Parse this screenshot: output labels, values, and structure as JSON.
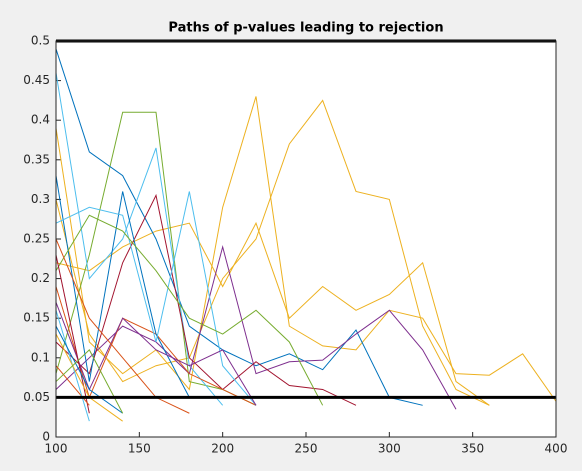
{
  "chart_data": {
    "type": "line",
    "title": "Paths of p-values leading to rejection",
    "x": [
      100,
      120,
      140,
      160,
      180,
      200,
      220,
      240,
      260,
      280,
      300,
      320,
      340,
      360,
      380,
      400
    ],
    "xlim": [
      100,
      400
    ],
    "xticks": [
      100,
      150,
      200,
      250,
      300,
      350,
      400
    ],
    "ylim": [
      0,
      0.5
    ],
    "yticks": [
      0,
      0.05,
      0.1,
      0.15,
      0.2,
      0.25,
      0.3,
      0.35,
      0.4,
      0.45,
      0.5
    ],
    "hlines": [
      0.5,
      0.05
    ],
    "hline_color": "#000000",
    "series": [
      {
        "color": "#EDB120",
        "values": [
          0.22,
          0.21,
          0.24,
          0.26,
          0.27,
          0.19,
          0.27,
          0.15,
          0.19,
          0.16,
          0.18,
          0.22,
          0.07,
          0.04,
          null,
          null
        ]
      },
      {
        "color": "#EDB120",
        "values": [
          0.39,
          0.12,
          0.08,
          0.11,
          0.06,
          0.29,
          0.43,
          0.14,
          0.115,
          0.11,
          0.16,
          0.15,
          0.08,
          0.078,
          0.105,
          0.045
        ]
      },
      {
        "color": "#EDB120",
        "values": [
          0.3,
          0.13,
          0.07,
          0.09,
          0.1,
          0.2,
          0.25,
          0.37,
          0.425,
          0.31,
          0.3,
          0.14,
          0.06,
          0.04,
          null,
          null
        ]
      },
      {
        "color": "#77AC30",
        "values": [
          0.08,
          0.23,
          0.41,
          0.41,
          0.07,
          0.06,
          0.04,
          null,
          null,
          null,
          null,
          null,
          null,
          null,
          null,
          null
        ]
      },
      {
        "color": "#0072BD",
        "values": [
          0.49,
          0.36,
          0.33,
          0.25,
          0.14,
          0.11,
          0.09,
          0.105,
          0.085,
          0.135,
          0.05,
          0.04,
          null,
          null,
          null,
          null
        ]
      },
      {
        "color": "#4DBEEE",
        "values": [
          0.46,
          0.2,
          0.25,
          0.365,
          0.09,
          0.04,
          null,
          null,
          null,
          null,
          null,
          null,
          null,
          null,
          null,
          null
        ]
      },
      {
        "color": "#7E2F8E",
        "values": [
          0.06,
          0.1,
          0.14,
          0.12,
          0.08,
          0.24,
          0.08,
          0.095,
          0.097,
          0.13,
          0.16,
          0.11,
          0.035,
          null,
          null,
          null
        ]
      },
      {
        "color": "#A2142F",
        "values": [
          0.12,
          0.08,
          0.22,
          0.305,
          0.1,
          0.06,
          0.095,
          0.065,
          0.06,
          0.04,
          null,
          null,
          null,
          null,
          null,
          null
        ]
      },
      {
        "color": "#D95319",
        "values": [
          0.19,
          0.05,
          0.15,
          0.13,
          0.08,
          0.06,
          0.04,
          null,
          null,
          null,
          null,
          null,
          null,
          null,
          null,
          null
        ]
      },
      {
        "color": "#0072BD",
        "values": [
          0.33,
          0.07,
          0.31,
          0.13,
          0.05,
          null,
          null,
          null,
          null,
          null,
          null,
          null,
          null,
          null,
          null,
          null
        ]
      },
      {
        "color": "#4DBEEE",
        "values": [
          0.27,
          0.29,
          0.28,
          0.12,
          0.31,
          0.09,
          0.04,
          null,
          null,
          null,
          null,
          null,
          null,
          null,
          null,
          null
        ]
      },
      {
        "color": "#77AC30",
        "values": [
          0.21,
          0.28,
          0.26,
          0.21,
          0.15,
          0.13,
          0.16,
          0.12,
          0.04,
          null,
          null,
          null,
          null,
          null,
          null,
          null
        ]
      },
      {
        "color": "#7E2F8E",
        "values": [
          0.17,
          0.06,
          0.15,
          0.11,
          0.09,
          0.11,
          0.04,
          null,
          null,
          null,
          null,
          null,
          null,
          null,
          null,
          null
        ]
      },
      {
        "color": "#A2142F",
        "values": [
          0.23,
          0.03,
          null,
          null,
          null,
          null,
          null,
          null,
          null,
          null,
          null,
          null,
          null,
          null,
          null,
          null
        ]
      },
      {
        "color": "#D95319",
        "values": [
          0.09,
          0.04,
          null,
          null,
          null,
          null,
          null,
          null,
          null,
          null,
          null,
          null,
          null,
          null,
          null,
          null
        ]
      },
      {
        "color": "#4DBEEE",
        "values": [
          0.16,
          0.02,
          null,
          null,
          null,
          null,
          null,
          null,
          null,
          null,
          null,
          null,
          null,
          null,
          null,
          null
        ]
      },
      {
        "color": "#0072BD",
        "values": [
          0.14,
          0.06,
          0.03,
          null,
          null,
          null,
          null,
          null,
          null,
          null,
          null,
          null,
          null,
          null,
          null,
          null
        ]
      },
      {
        "color": "#EDB120",
        "values": [
          0.13,
          0.05,
          0.02,
          null,
          null,
          null,
          null,
          null,
          null,
          null,
          null,
          null,
          null,
          null,
          null,
          null
        ]
      },
      {
        "color": "#77AC30",
        "values": [
          0.07,
          0.11,
          0.03,
          null,
          null,
          null,
          null,
          null,
          null,
          null,
          null,
          null,
          null,
          null,
          null,
          null
        ]
      },
      {
        "color": "#D95319",
        "values": [
          0.25,
          0.15,
          0.1,
          0.05,
          0.03,
          null,
          null,
          null,
          null,
          null,
          null,
          null,
          null,
          null,
          null,
          null
        ]
      }
    ]
  }
}
